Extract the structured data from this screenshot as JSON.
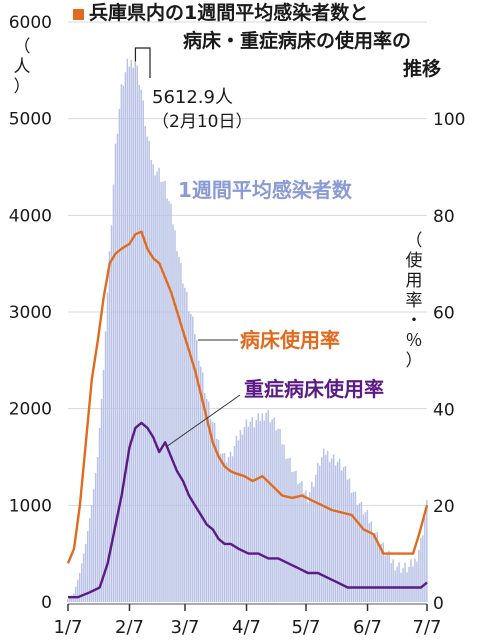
{
  "title_lines": [
    "兵庫県内の1週間平均感染者数と",
    "病床・重症病床の使用率の",
    "推移"
  ],
  "left_unit": [
    "（",
    "人",
    "）"
  ],
  "right_unit": [
    "（",
    "使",
    "用",
    "率",
    "・",
    "％",
    "）"
  ],
  "annotation": {
    "line1": "5612.9人",
    "line2": "（2月10日）"
  },
  "colors": {
    "bars": "#b8c2e6",
    "bed": "#e06b1f",
    "severe": "#5b1a86",
    "text": "#1a1a1a",
    "series_label_bars": "#8a9ad4"
  },
  "chart_data": {
    "type": "bar+line",
    "x_ticks": [
      "1/7",
      "2/7",
      "3/7",
      "4/7",
      "5/7",
      "6/7",
      "7/7"
    ],
    "left_axis": {
      "min": 0,
      "max": 6000,
      "ticks": [
        0,
        1000,
        2000,
        3000,
        4000,
        5000,
        6000
      ]
    },
    "right_axis": {
      "min": 0,
      "max": 100,
      "ticks": [
        0,
        20,
        40,
        60,
        80,
        100
      ]
    },
    "series": [
      {
        "name": "1週間平均感染者数",
        "axis": "left",
        "type": "bar",
        "points": [
          [
            "1/7",
            30
          ],
          [
            "1/10",
            90
          ],
          [
            "1/13",
            300
          ],
          [
            "1/16",
            600
          ],
          [
            "1/19",
            1000
          ],
          [
            "1/22",
            1500
          ],
          [
            "1/25",
            2400
          ],
          [
            "1/28",
            3600
          ],
          [
            "1/31",
            4700
          ],
          [
            "2/3",
            5300
          ],
          [
            "2/6",
            5550
          ],
          [
            "2/10",
            5612.9
          ],
          [
            "2/13",
            5300
          ],
          [
            "2/16",
            4800
          ],
          [
            "2/19",
            4500
          ],
          [
            "2/22",
            4450
          ],
          [
            "2/25",
            4300
          ],
          [
            "2/28",
            4050
          ],
          [
            "3/3",
            3700
          ],
          [
            "3/6",
            3350
          ],
          [
            "3/9",
            3050
          ],
          [
            "3/12",
            2800
          ],
          [
            "3/15",
            2450
          ],
          [
            "3/18",
            2100
          ],
          [
            "3/21",
            1850
          ],
          [
            "3/24",
            1650
          ],
          [
            "3/27",
            1500
          ],
          [
            "3/30",
            1500
          ],
          [
            "4/2",
            1650
          ],
          [
            "4/5",
            1800
          ],
          [
            "4/8",
            1870
          ],
          [
            "4/11",
            1850
          ],
          [
            "4/14",
            1900
          ],
          [
            "4/17",
            1970
          ],
          [
            "4/20",
            1890
          ],
          [
            "4/23",
            1780
          ],
          [
            "4/26",
            1600
          ],
          [
            "4/29",
            1450
          ],
          [
            "5/2",
            1300
          ],
          [
            "5/5",
            1180
          ],
          [
            "5/8",
            1100
          ],
          [
            "5/11",
            1250
          ],
          [
            "5/14",
            1450
          ],
          [
            "5/17",
            1550
          ],
          [
            "5/20",
            1500
          ],
          [
            "5/23",
            1450
          ],
          [
            "5/26",
            1380
          ],
          [
            "5/29",
            1250
          ],
          [
            "6/1",
            1100
          ],
          [
            "6/4",
            980
          ],
          [
            "6/7",
            880
          ],
          [
            "6/10",
            770
          ],
          [
            "6/13",
            640
          ],
          [
            "6/16",
            520
          ],
          [
            "6/19",
            430
          ],
          [
            "6/22",
            380
          ],
          [
            "6/25",
            350
          ],
          [
            "6/28",
            350
          ],
          [
            "7/1",
            420
          ],
          [
            "7/4",
            620
          ],
          [
            "7/7",
            1000
          ]
        ]
      },
      {
        "name": "病床使用率",
        "axis": "right",
        "type": "line",
        "points": [
          [
            "1/7",
            8
          ],
          [
            "1/10",
            11
          ],
          [
            "1/13",
            20
          ],
          [
            "1/16",
            33
          ],
          [
            "1/19",
            46
          ],
          [
            "1/22",
            54
          ],
          [
            "1/25",
            63
          ],
          [
            "1/28",
            70
          ],
          [
            "1/31",
            72
          ],
          [
            "2/3",
            73
          ],
          [
            "2/7",
            74
          ],
          [
            "2/10",
            76
          ],
          [
            "2/13",
            76.5
          ],
          [
            "2/16",
            73
          ],
          [
            "2/19",
            71
          ],
          [
            "2/22",
            70
          ],
          [
            "2/25",
            67
          ],
          [
            "2/28",
            64
          ],
          [
            "3/3",
            60
          ],
          [
            "3/6",
            56
          ],
          [
            "3/9",
            52
          ],
          [
            "3/12",
            48
          ],
          [
            "3/15",
            43
          ],
          [
            "3/18",
            38
          ],
          [
            "3/21",
            33
          ],
          [
            "3/24",
            30
          ],
          [
            "3/27",
            28
          ],
          [
            "3/30",
            27
          ],
          [
            "4/2",
            26.5
          ],
          [
            "4/6",
            26
          ],
          [
            "4/10",
            25
          ],
          [
            "4/15",
            26
          ],
          [
            "4/20",
            24
          ],
          [
            "4/25",
            22
          ],
          [
            "4/30",
            21.5
          ],
          [
            "5/5",
            22
          ],
          [
            "5/10",
            21
          ],
          [
            "5/15",
            20
          ],
          [
            "5/20",
            19
          ],
          [
            "5/25",
            18.5
          ],
          [
            "5/30",
            18
          ],
          [
            "6/5",
            15
          ],
          [
            "6/10",
            14
          ],
          [
            "6/15",
            10
          ],
          [
            "6/20",
            10
          ],
          [
            "6/25",
            10
          ],
          [
            "6/30",
            10
          ],
          [
            "7/3",
            14
          ],
          [
            "7/7",
            20
          ]
        ]
      },
      {
        "name": "重症病床使用率",
        "axis": "right",
        "type": "line",
        "points": [
          [
            "1/7",
            1
          ],
          [
            "1/12",
            1
          ],
          [
            "1/18",
            2
          ],
          [
            "1/23",
            3
          ],
          [
            "1/27",
            8
          ],
          [
            "1/31",
            16
          ],
          [
            "2/3",
            22
          ],
          [
            "2/7",
            32
          ],
          [
            "2/10",
            36
          ],
          [
            "2/13",
            37
          ],
          [
            "2/16",
            36
          ],
          [
            "2/19",
            34
          ],
          [
            "2/22",
            31
          ],
          [
            "2/25",
            33
          ],
          [
            "2/28",
            30
          ],
          [
            "3/3",
            27
          ],
          [
            "3/6",
            25
          ],
          [
            "3/9",
            22
          ],
          [
            "3/12",
            20
          ],
          [
            "3/15",
            18
          ],
          [
            "3/18",
            16
          ],
          [
            "3/21",
            15
          ],
          [
            "3/24",
            13
          ],
          [
            "3/27",
            12
          ],
          [
            "3/30",
            12
          ],
          [
            "4/3",
            11
          ],
          [
            "4/8",
            10
          ],
          [
            "4/13",
            10
          ],
          [
            "4/18",
            9
          ],
          [
            "4/23",
            9
          ],
          [
            "4/28",
            8
          ],
          [
            "5/3",
            7
          ],
          [
            "5/8",
            6
          ],
          [
            "5/13",
            6
          ],
          [
            "5/18",
            5
          ],
          [
            "5/23",
            4
          ],
          [
            "5/28",
            3
          ],
          [
            "6/2",
            3
          ],
          [
            "6/10",
            3
          ],
          [
            "6/20",
            3
          ],
          [
            "6/30",
            3
          ],
          [
            "7/4",
            3
          ],
          [
            "7/7",
            4
          ]
        ]
      }
    ],
    "series_labels": [
      {
        "text": "1週間平均感染者数"
      },
      {
        "text": "病床使用率"
      },
      {
        "text": "重症病床使用率"
      }
    ]
  }
}
